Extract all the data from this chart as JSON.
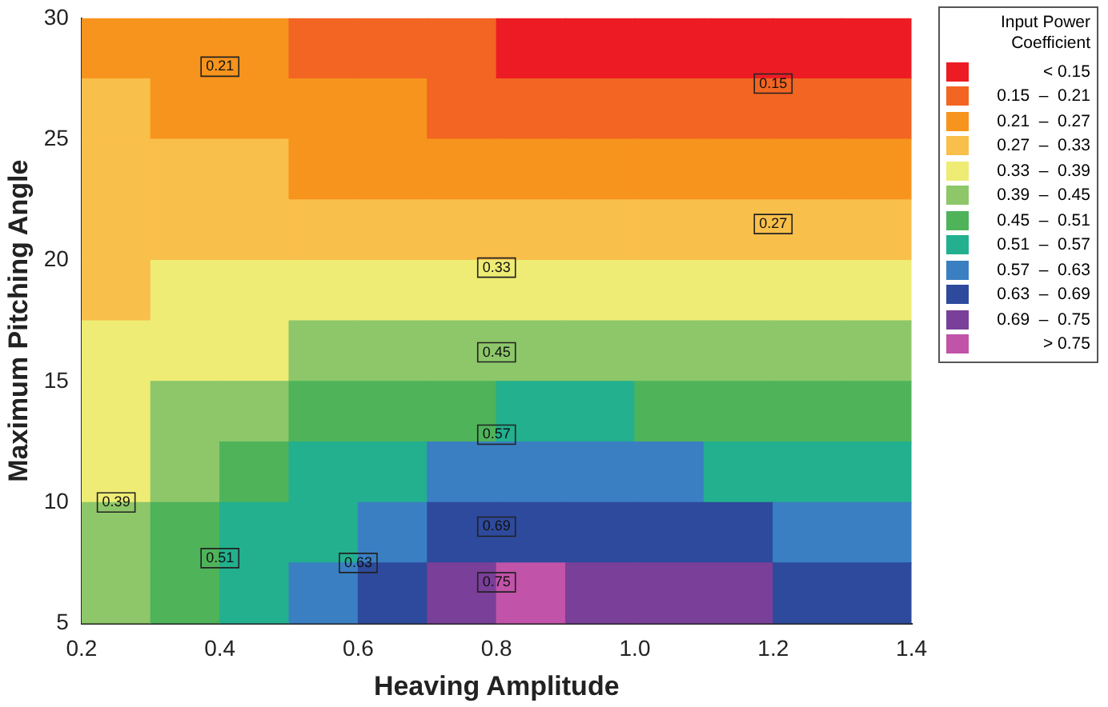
{
  "chart_data": {
    "type": "heatmap",
    "xlabel": "Heaving Amplitude",
    "ylabel": "Maximum Pitching Angle",
    "legend_title": "Input Power Coefficient",
    "x": [
      0.25,
      0.35,
      0.45,
      0.55,
      0.65,
      0.75,
      0.85,
      0.95,
      1.05,
      1.15,
      1.25,
      1.35
    ],
    "y": [
      28.75,
      26.25,
      23.75,
      21.25,
      18.75,
      16.25,
      13.75,
      11.25,
      8.75,
      6.25
    ],
    "cells": [
      [
        0.26,
        0.23,
        0.21,
        0.19,
        0.17,
        0.16,
        0.14,
        0.14,
        0.14,
        0.14,
        0.14,
        0.14
      ],
      [
        0.28,
        0.26,
        0.24,
        0.23,
        0.22,
        0.2,
        0.19,
        0.19,
        0.18,
        0.18,
        0.18,
        0.17
      ],
      [
        0.29,
        0.28,
        0.28,
        0.26,
        0.26,
        0.25,
        0.25,
        0.24,
        0.24,
        0.23,
        0.23,
        0.22
      ],
      [
        0.31,
        0.31,
        0.31,
        0.3,
        0.3,
        0.3,
        0.3,
        0.3,
        0.29,
        0.29,
        0.28,
        0.28
      ],
      [
        0.32,
        0.34,
        0.34,
        0.35,
        0.36,
        0.36,
        0.37,
        0.36,
        0.36,
        0.35,
        0.35,
        0.35
      ],
      [
        0.34,
        0.36,
        0.38,
        0.4,
        0.42,
        0.43,
        0.44,
        0.44,
        0.43,
        0.43,
        0.42,
        0.42
      ],
      [
        0.36,
        0.4,
        0.43,
        0.46,
        0.48,
        0.5,
        0.52,
        0.52,
        0.5,
        0.5,
        0.49,
        0.48
      ],
      [
        0.38,
        0.43,
        0.47,
        0.52,
        0.55,
        0.58,
        0.6,
        0.6,
        0.58,
        0.56,
        0.56,
        0.55
      ],
      [
        0.41,
        0.46,
        0.52,
        0.56,
        0.61,
        0.66,
        0.68,
        0.68,
        0.66,
        0.64,
        0.62,
        0.6
      ],
      [
        0.44,
        0.5,
        0.56,
        0.62,
        0.68,
        0.73,
        0.76,
        0.74,
        0.72,
        0.7,
        0.68,
        0.66
      ]
    ],
    "cticks": [
      {
        "value": 0.12,
        "label": "< 0.15"
      },
      {
        "value": 0.18,
        "label": "0.15  –  0.21"
      },
      {
        "value": 0.24,
        "label": "0.21  –  0.27"
      },
      {
        "value": 0.3,
        "label": "0.27  –  0.33"
      },
      {
        "value": 0.36,
        "label": "0.33  –  0.39"
      },
      {
        "value": 0.42,
        "label": "0.39  –  0.45"
      },
      {
        "value": 0.48,
        "label": "0.45  –  0.51"
      },
      {
        "value": 0.54,
        "label": "0.51  –  0.57"
      },
      {
        "value": 0.6,
        "label": "0.57  –  0.63"
      },
      {
        "value": 0.66,
        "label": "0.63  –  0.69"
      },
      {
        "value": 0.72,
        "label": "0.69  –  0.75"
      },
      {
        "value": 0.78,
        "label": "> 0.75"
      }
    ],
    "colors": [
      "#ed1c24",
      "#f26522",
      "#f7941d",
      "#f9bf4b",
      "#eeec74",
      "#8dc76a",
      "#4fb35a",
      "#22b08f",
      "#3a7fc1",
      "#2e4a9c",
      "#7a3f98",
      "#c153a8"
    ],
    "xlim": [
      0.2,
      1.4
    ],
    "ylim": [
      5,
      30
    ],
    "xticks": [
      0.2,
      0.4,
      0.6,
      0.8,
      {
        "value": 1,
        "label": "1.0"
      },
      1.2,
      1.4
    ],
    "yticks": [
      5,
      10,
      15,
      20,
      25,
      30
    ],
    "annotations": [
      {
        "text": "0.21",
        "x": 0.4,
        "y": 28
      },
      {
        "text": "0.15",
        "x": 1.2,
        "y": 27.3
      },
      {
        "text": "0.27",
        "x": 1.2,
        "y": 21.5
      },
      {
        "text": "0.33",
        "x": 0.8,
        "y": 19.7
      },
      {
        "text": "0.45",
        "x": 0.8,
        "y": 16.2
      },
      {
        "text": "0.57",
        "x": 0.8,
        "y": 12.8
      },
      {
        "text": "0.69",
        "x": 0.8,
        "y": 9
      },
      {
        "text": "0.75",
        "x": 0.8,
        "y": 6.7
      },
      {
        "text": "0.39",
        "x": 0.25,
        "y": 10
      },
      {
        "text": "0.51",
        "x": 0.4,
        "y": 7.7
      },
      {
        "text": "0.63",
        "x": 0.6,
        "y": 7.5
      }
    ]
  }
}
